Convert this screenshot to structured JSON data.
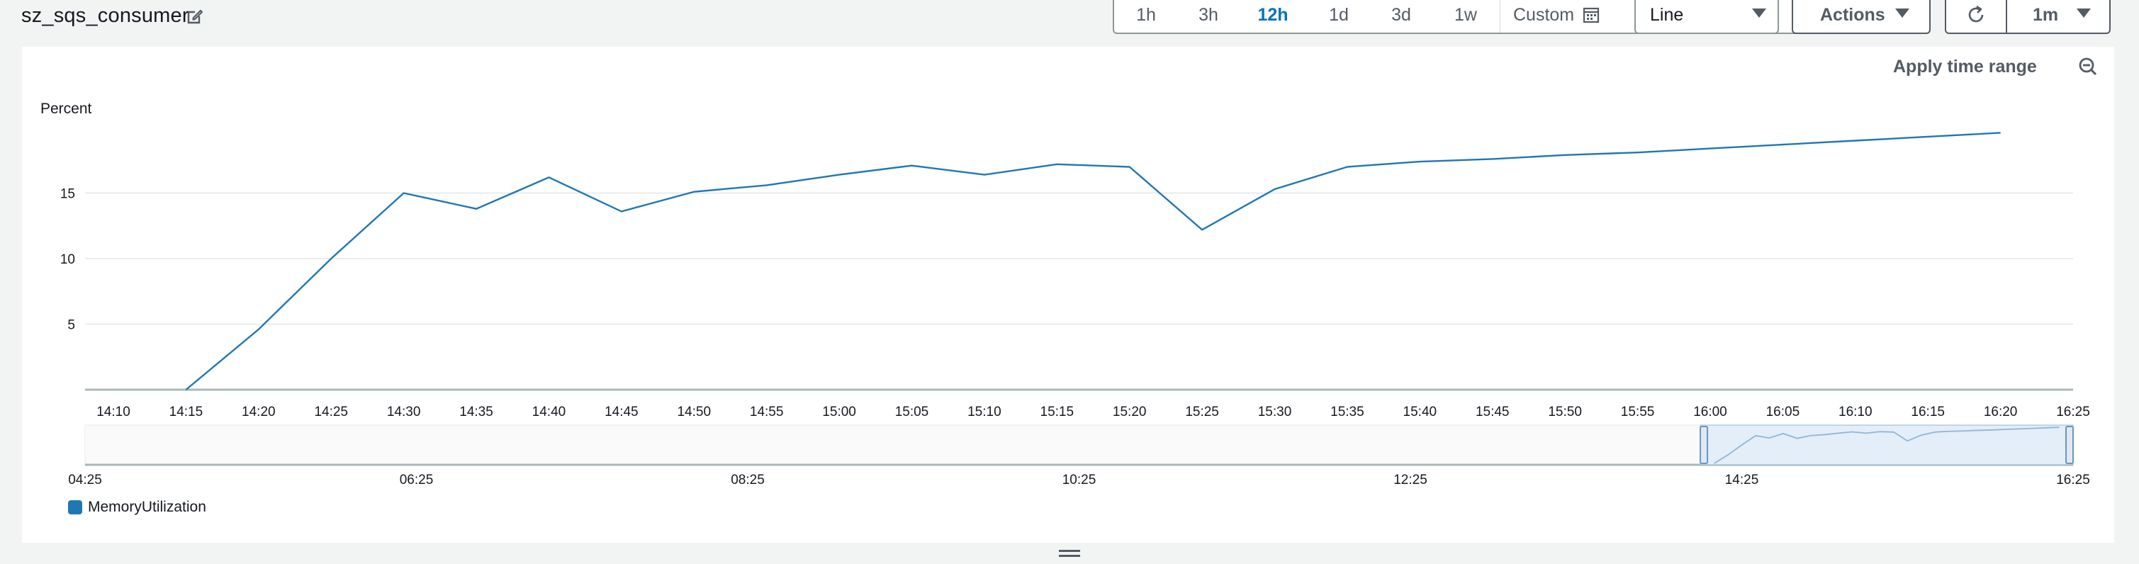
{
  "widget": {
    "title": "sz_sqs_consumer"
  },
  "time_ranges": [
    "1h",
    "3h",
    "12h",
    "1d",
    "3d",
    "1w"
  ],
  "active_range": "12h",
  "custom_label": "Custom",
  "view_select": {
    "value": "Line"
  },
  "actions_label": "Actions",
  "refresh_interval": "1m",
  "apply_time_range_label": "Apply time range",
  "icons": {
    "edit": "edit-icon",
    "calendar": "calendar-icon",
    "refresh": "refresh-icon",
    "zoom_out": "zoom-out-icon",
    "resize": "resize-handle-icon"
  },
  "chart_data": {
    "type": "line",
    "ylabel": "Percent",
    "y_ticks": [
      5,
      10,
      15
    ],
    "ylim": [
      0,
      20
    ],
    "x_ticks": [
      "14:10",
      "14:15",
      "14:20",
      "14:25",
      "14:30",
      "14:35",
      "14:40",
      "14:45",
      "14:50",
      "14:55",
      "15:00",
      "15:05",
      "15:10",
      "15:15",
      "15:20",
      "15:25",
      "15:30",
      "15:35",
      "15:40",
      "15:45",
      "15:50",
      "15:55",
      "16:00",
      "16:05",
      "16:10",
      "16:15",
      "16:20",
      "16:25"
    ],
    "grid": true,
    "legend": "bottom-left",
    "series": [
      {
        "name": "MemoryUtilization",
        "color": "#1f77b4",
        "x": [
          "14:15",
          "14:20",
          "14:25",
          "14:30",
          "14:35",
          "14:40",
          "14:45",
          "14:50",
          "14:55",
          "15:00",
          "15:05",
          "15:10",
          "15:15",
          "15:20",
          "15:25",
          "15:30",
          "15:35",
          "15:40",
          "15:45",
          "15:50",
          "15:55",
          "16:00",
          "16:05",
          "16:10",
          "16:15",
          "16:20"
        ],
        "values": [
          0,
          4.6,
          10.0,
          15.0,
          13.8,
          16.2,
          13.6,
          15.1,
          15.6,
          16.4,
          17.1,
          16.4,
          17.2,
          17.0,
          12.2,
          15.3,
          17.0,
          17.4,
          17.6,
          17.9,
          18.1,
          18.4,
          18.7,
          19.0,
          19.3,
          19.6
        ]
      }
    ],
    "overview": {
      "x_ticks": [
        "04:25",
        "06:25",
        "08:25",
        "10:25",
        "12:25",
        "14:25",
        "16:25"
      ],
      "selection": [
        "14:10",
        "16:25"
      ]
    }
  }
}
